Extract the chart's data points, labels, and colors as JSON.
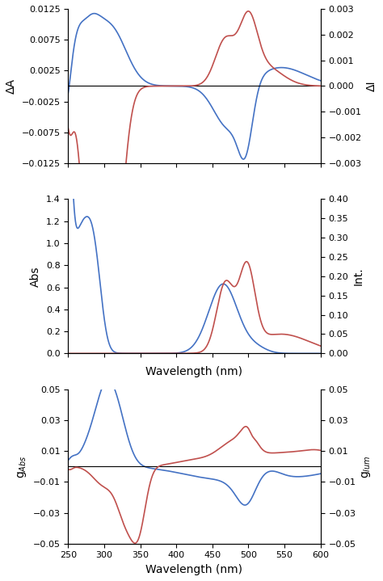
{
  "xlim": [
    250,
    600
  ],
  "xlabel": "Wavelength (nm)",
  "panel1": {
    "left_label": "ΔA",
    "right_label": "ΔI",
    "left_ylim": [
      -0.0125,
      0.0125
    ],
    "right_ylim": [
      -0.003,
      0.003
    ],
    "left_yticks": [
      -0.0125,
      -0.0075,
      -0.0025,
      0.0025,
      0.0075,
      0.0125
    ],
    "right_yticks": [
      -0.003,
      -0.002,
      -0.001,
      0,
      0.001,
      0.002,
      0.003
    ]
  },
  "panel2": {
    "left_label": "Abs",
    "right_label": "Int.",
    "left_ylim": [
      0,
      1.4
    ],
    "right_ylim": [
      0,
      0.4
    ],
    "left_yticks": [
      0,
      0.2,
      0.4,
      0.6,
      0.8,
      1.0,
      1.2,
      1.4
    ],
    "right_yticks": [
      0,
      0.05,
      0.1,
      0.15,
      0.2,
      0.25,
      0.3,
      0.35,
      0.4
    ]
  },
  "panel3": {
    "left_label": "g$_{Abs}$",
    "right_label": "g$_{lum}$",
    "left_ylim": [
      -0.05,
      0.05
    ],
    "right_ylim": [
      -0.05,
      0.05
    ],
    "left_yticks": [
      -0.05,
      -0.03,
      -0.01,
      0.01,
      0.03,
      0.05
    ],
    "right_yticks": [
      -0.05,
      -0.03,
      -0.01,
      0.01,
      0.03,
      0.05
    ]
  },
  "blue_color": "#4472C4",
  "red_color": "#C0504D",
  "line_width": 1.2,
  "xticks": [
    250,
    300,
    350,
    400,
    450,
    500,
    550,
    600
  ]
}
